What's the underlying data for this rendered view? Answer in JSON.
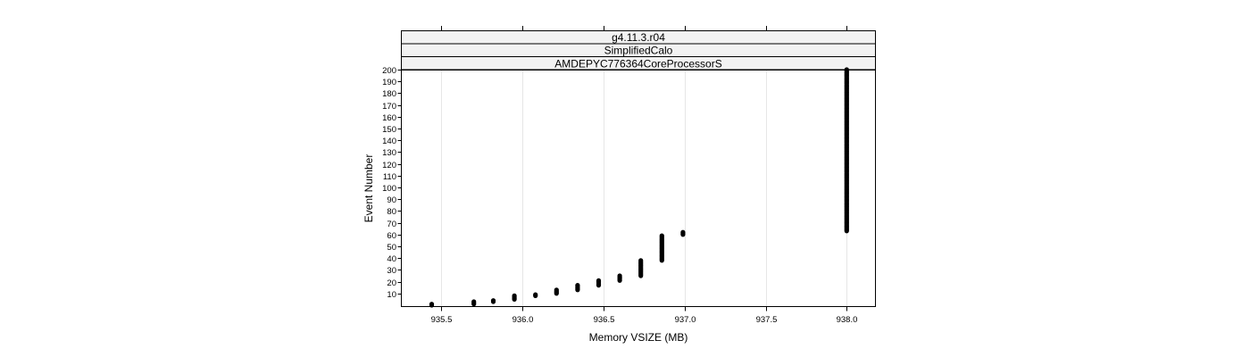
{
  "chart_data": {
    "type": "scatter",
    "strips": [
      "g4.11.3.r04",
      "SimplifiedCalo",
      "AMDEPYC776364CoreProcessorS"
    ],
    "xlabel": "Memory VSIZE (MB)",
    "ylabel": "Event Number",
    "xlim": [
      935.25,
      938.18
    ],
    "ylim": [
      0,
      200
    ],
    "x_ticks": [
      935.5,
      936.0,
      936.5,
      937.0,
      937.5,
      938.0
    ],
    "x_tick_labels": [
      "935.5",
      "936.0",
      "936.5",
      "937.0",
      "937.5",
      "938.0"
    ],
    "y_ticks": [
      10,
      20,
      30,
      40,
      50,
      60,
      70,
      80,
      90,
      100,
      110,
      120,
      130,
      140,
      150,
      160,
      170,
      180,
      190,
      200
    ],
    "y_tick_labels": [
      "10",
      "20",
      "30",
      "40",
      "50",
      "60",
      "70",
      "80",
      "90",
      "100",
      "110",
      "120",
      "130",
      "140",
      "150",
      "160",
      "170",
      "180",
      "190",
      "200"
    ],
    "grid": "vertical",
    "point_groups": [
      {
        "x": 935.44,
        "y_from": 0,
        "y_to": 1
      },
      {
        "x": 935.7,
        "y_from": 1,
        "y_to": 3
      },
      {
        "x": 935.82,
        "y_from": 3,
        "y_to": 4
      },
      {
        "x": 935.95,
        "y_from": 5,
        "y_to": 8
      },
      {
        "x": 936.08,
        "y_from": 8,
        "y_to": 9
      },
      {
        "x": 936.21,
        "y_from": 10,
        "y_to": 13
      },
      {
        "x": 936.34,
        "y_from": 13,
        "y_to": 17
      },
      {
        "x": 936.47,
        "y_from": 17,
        "y_to": 21
      },
      {
        "x": 936.6,
        "y_from": 21,
        "y_to": 25
      },
      {
        "x": 936.73,
        "y_from": 25,
        "y_to": 38
      },
      {
        "x": 936.86,
        "y_from": 38,
        "y_to": 59
      },
      {
        "x": 936.99,
        "y_from": 60,
        "y_to": 62
      },
      {
        "x": 938.0,
        "y_from": 63,
        "y_to": 200
      }
    ]
  }
}
